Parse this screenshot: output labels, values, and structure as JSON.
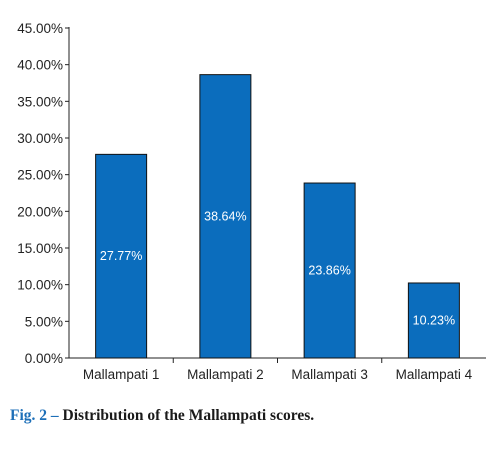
{
  "chart_data": {
    "type": "bar",
    "categories": [
      "Mallampati 1",
      "Mallampati 2",
      "Mallampati 3",
      "Mallampati 4"
    ],
    "values": [
      27.77,
      38.64,
      23.86,
      10.23
    ],
    "data_labels": [
      "27.77%",
      "38.64%",
      "23.86%",
      "10.23%"
    ],
    "yticks": [
      "0.00%",
      "5.00%",
      "10.00%",
      "15.00%",
      "20.00%",
      "25.00%",
      "30.00%",
      "35.00%",
      "40.00%",
      "45.00%"
    ],
    "ylim": [
      0,
      45
    ],
    "grid": false,
    "bar_color": "#0b6dbd",
    "bar_edge_color": "#111111"
  },
  "caption": {
    "fig_label": "Fig. 2 –",
    "text": "Distribution of the Mallampati scores."
  }
}
